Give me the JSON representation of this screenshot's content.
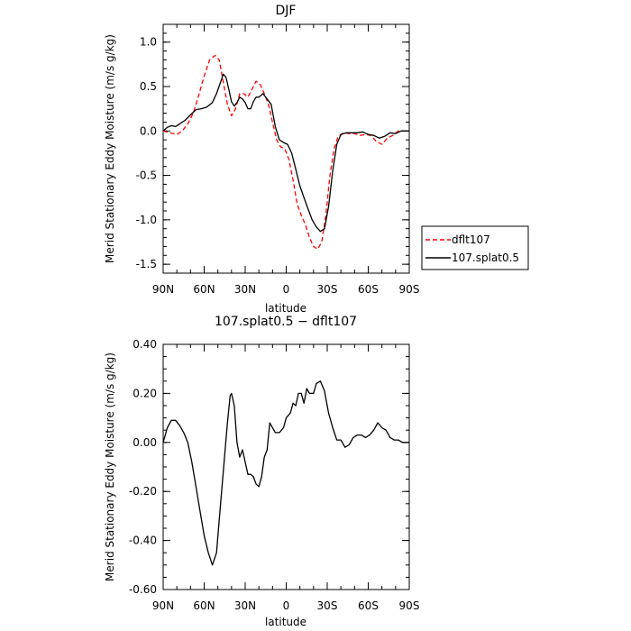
{
  "chart_data": [
    {
      "type": "line",
      "title": "DJF",
      "xlabel": "latitude",
      "ylabel": "Merid Stationary Eddy Moisture (m/s g/kg)",
      "xlim": [
        90,
        -90
      ],
      "ylim": [
        -1.6,
        1.2
      ],
      "xticks": [
        {
          "value": 90,
          "label": "90N"
        },
        {
          "value": 60,
          "label": "60N"
        },
        {
          "value": 30,
          "label": "30N"
        },
        {
          "value": 0,
          "label": "0"
        },
        {
          "value": -30,
          "label": "30S"
        },
        {
          "value": -60,
          "label": "60S"
        },
        {
          "value": -90,
          "label": "90S"
        }
      ],
      "yticks": [
        {
          "value": 1.0,
          "label": "1.0"
        },
        {
          "value": 0.5,
          "label": "0.5"
        },
        {
          "value": 0.0,
          "label": "0.0"
        },
        {
          "value": -0.5,
          "label": "-0.5"
        },
        {
          "value": -1.0,
          "label": "-1.0"
        },
        {
          "value": -1.5,
          "label": "-1.5"
        }
      ],
      "legend": "bottom-right, outside",
      "series": [
        {
          "name": "dflt107",
          "color": "#ff0000",
          "style": "dashed",
          "points": [
            [
              90,
              0.0
            ],
            [
              85,
              -0.02
            ],
            [
              80,
              -0.04
            ],
            [
              76,
              0.0
            ],
            [
              72,
              0.08
            ],
            [
              68,
              0.2
            ],
            [
              64,
              0.4
            ],
            [
              60,
              0.62
            ],
            [
              56,
              0.8
            ],
            [
              52,
              0.85
            ],
            [
              49,
              0.8
            ],
            [
              46,
              0.55
            ],
            [
              43,
              0.3
            ],
            [
              40,
              0.17
            ],
            [
              37,
              0.25
            ],
            [
              34,
              0.42
            ],
            [
              31,
              0.42
            ],
            [
              28,
              0.38
            ],
            [
              25,
              0.47
            ],
            [
              22,
              0.56
            ],
            [
              19,
              0.52
            ],
            [
              16,
              0.42
            ],
            [
              13,
              0.3
            ],
            [
              10,
              0.1
            ],
            [
              7,
              -0.1
            ],
            [
              4,
              -0.18
            ],
            [
              1,
              -0.2
            ],
            [
              -2,
              -0.32
            ],
            [
              -5,
              -0.55
            ],
            [
              -8,
              -0.82
            ],
            [
              -11,
              -0.95
            ],
            [
              -14,
              -1.05
            ],
            [
              -17,
              -1.2
            ],
            [
              -20,
              -1.3
            ],
            [
              -23,
              -1.33
            ],
            [
              -26,
              -1.25
            ],
            [
              -29,
              -0.95
            ],
            [
              -32,
              -0.5
            ],
            [
              -35,
              -0.2
            ],
            [
              -38,
              -0.06
            ],
            [
              -42,
              -0.02
            ],
            [
              -46,
              -0.03
            ],
            [
              -50,
              -0.03
            ],
            [
              -54,
              -0.05
            ],
            [
              -58,
              -0.04
            ],
            [
              -62,
              -0.05
            ],
            [
              -66,
              -0.12
            ],
            [
              -70,
              -0.15
            ],
            [
              -74,
              -0.08
            ],
            [
              -78,
              -0.05
            ],
            [
              -82,
              0.0
            ],
            [
              -86,
              0.0
            ],
            [
              -90,
              0.0
            ]
          ]
        },
        {
          "name": "107.splat0.5",
          "color": "#000000",
          "style": "solid",
          "points": [
            [
              90,
              0.0
            ],
            [
              87,
              0.04
            ],
            [
              84,
              0.06
            ],
            [
              81,
              0.05
            ],
            [
              78,
              0.08
            ],
            [
              74,
              0.12
            ],
            [
              70,
              0.18
            ],
            [
              66,
              0.24
            ],
            [
              62,
              0.25
            ],
            [
              58,
              0.27
            ],
            [
              54,
              0.32
            ],
            [
              51,
              0.42
            ],
            [
              48,
              0.55
            ],
            [
              46,
              0.64
            ],
            [
              44,
              0.6
            ],
            [
              42,
              0.47
            ],
            [
              40,
              0.33
            ],
            [
              38,
              0.28
            ],
            [
              36,
              0.32
            ],
            [
              34,
              0.38
            ],
            [
              32,
              0.36
            ],
            [
              30,
              0.32
            ],
            [
              28,
              0.25
            ],
            [
              26,
              0.25
            ],
            [
              24,
              0.33
            ],
            [
              22,
              0.38
            ],
            [
              20,
              0.38
            ],
            [
              17,
              0.42
            ],
            [
              14,
              0.36
            ],
            [
              11,
              0.3
            ],
            [
              8,
              0.05
            ],
            [
              5,
              -0.1
            ],
            [
              2,
              -0.13
            ],
            [
              -1,
              -0.15
            ],
            [
              -4,
              -0.25
            ],
            [
              -7,
              -0.43
            ],
            [
              -10,
              -0.62
            ],
            [
              -13,
              -0.75
            ],
            [
              -16,
              -0.88
            ],
            [
              -19,
              -1.0
            ],
            [
              -22,
              -1.08
            ],
            [
              -25,
              -1.13
            ],
            [
              -28,
              -1.1
            ],
            [
              -31,
              -0.85
            ],
            [
              -34,
              -0.45
            ],
            [
              -37,
              -0.15
            ],
            [
              -40,
              -0.04
            ],
            [
              -44,
              -0.02
            ],
            [
              -48,
              -0.02
            ],
            [
              -52,
              -0.02
            ],
            [
              -56,
              -0.01
            ],
            [
              -60,
              -0.04
            ],
            [
              -64,
              -0.05
            ],
            [
              -68,
              -0.08
            ],
            [
              -72,
              -0.06
            ],
            [
              -76,
              -0.02
            ],
            [
              -80,
              -0.03
            ],
            [
              -84,
              0.0
            ],
            [
              -90,
              0.0
            ]
          ]
        }
      ]
    },
    {
      "type": "line",
      "title": "107.splat0.5 − dflt107",
      "xlabel": "latitude",
      "ylabel": "Merid Stationary Eddy Moisture (m/s g/kg)",
      "xlim": [
        90,
        -90
      ],
      "ylim": [
        -0.6,
        0.4
      ],
      "xticks": [
        {
          "value": 90,
          "label": "90N"
        },
        {
          "value": 60,
          "label": "60N"
        },
        {
          "value": 30,
          "label": "30N"
        },
        {
          "value": 0,
          "label": "0"
        },
        {
          "value": -30,
          "label": "30S"
        },
        {
          "value": -60,
          "label": "60S"
        },
        {
          "value": -90,
          "label": "90S"
        }
      ],
      "yticks": [
        {
          "value": 0.4,
          "label": "0.40"
        },
        {
          "value": 0.2,
          "label": "0.20"
        },
        {
          "value": 0.0,
          "label": "0.00"
        },
        {
          "value": -0.2,
          "label": "-0.20"
        },
        {
          "value": -0.4,
          "label": "-0.40"
        },
        {
          "value": -0.6,
          "label": "-0.60"
        }
      ],
      "series": [
        {
          "color": "#000000",
          "style": "solid",
          "points": [
            [
              90,
              0.0
            ],
            [
              87,
              0.06
            ],
            [
              84,
              0.09
            ],
            [
              81,
              0.09
            ],
            [
              78,
              0.07
            ],
            [
              75,
              0.04
            ],
            [
              72,
              0.0
            ],
            [
              69,
              -0.08
            ],
            [
              66,
              -0.18
            ],
            [
              63,
              -0.28
            ],
            [
              60,
              -0.38
            ],
            [
              57,
              -0.45
            ],
            [
              54,
              -0.5
            ],
            [
              51,
              -0.45
            ],
            [
              48,
              -0.25
            ],
            [
              45,
              -0.05
            ],
            [
              43,
              0.08
            ],
            [
              41,
              0.19
            ],
            [
              40,
              0.2
            ],
            [
              38,
              0.15
            ],
            [
              36,
              0.0
            ],
            [
              34,
              -0.06
            ],
            [
              32,
              -0.03
            ],
            [
              30,
              -0.08
            ],
            [
              28,
              -0.13
            ],
            [
              26,
              -0.13
            ],
            [
              24,
              -0.14
            ],
            [
              22,
              -0.17
            ],
            [
              20,
              -0.18
            ],
            [
              18,
              -0.14
            ],
            [
              16,
              -0.06
            ],
            [
              14,
              -0.03
            ],
            [
              12,
              0.08
            ],
            [
              10,
              0.06
            ],
            [
              8,
              0.04
            ],
            [
              5,
              0.04
            ],
            [
              2,
              0.06
            ],
            [
              0,
              0.1
            ],
            [
              -3,
              0.12
            ],
            [
              -5,
              0.16
            ],
            [
              -7,
              0.15
            ],
            [
              -9,
              0.2
            ],
            [
              -11,
              0.2
            ],
            [
              -13,
              0.16
            ],
            [
              -15,
              0.22
            ],
            [
              -17,
              0.2
            ],
            [
              -20,
              0.2
            ],
            [
              -22,
              0.24
            ],
            [
              -25,
              0.25
            ],
            [
              -28,
              0.21
            ],
            [
              -31,
              0.12
            ],
            [
              -34,
              0.06
            ],
            [
              -37,
              0.01
            ],
            [
              -40,
              0.01
            ],
            [
              -43,
              -0.02
            ],
            [
              -46,
              -0.01
            ],
            [
              -49,
              0.02
            ],
            [
              -52,
              0.03
            ],
            [
              -55,
              0.03
            ],
            [
              -58,
              0.02
            ],
            [
              -61,
              0.03
            ],
            [
              -64,
              0.05
            ],
            [
              -67,
              0.08
            ],
            [
              -70,
              0.06
            ],
            [
              -73,
              0.05
            ],
            [
              -76,
              0.02
            ],
            [
              -79,
              0.01
            ],
            [
              -82,
              0.01
            ],
            [
              -85,
              0.0
            ],
            [
              -90,
              0.0
            ]
          ]
        }
      ]
    }
  ]
}
